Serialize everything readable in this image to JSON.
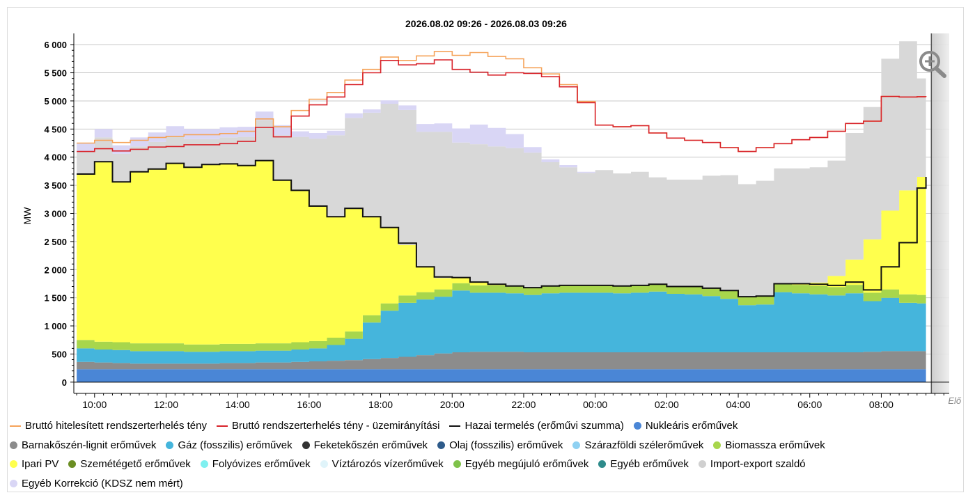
{
  "chart_data": {
    "type": "area",
    "title": "2026.08.02 09:26 - 2026.08.03 09:26",
    "ylabel": "MW",
    "ylim": [
      -200,
      6200
    ],
    "y_ticks": [
      0,
      500,
      1000,
      1500,
      2000,
      2500,
      3000,
      3500,
      4000,
      4500,
      5000,
      5500,
      6000
    ],
    "y_tick_labels": [
      "0",
      "500",
      "1 000",
      "1 500",
      "2 000",
      "2 500",
      "3 000",
      "3 500",
      "4 000",
      "4 500",
      "5 000",
      "5 500",
      "6 000"
    ],
    "xlim_hours": [
      9.42,
      33.9
    ],
    "x_ticks": [
      10,
      12,
      14,
      16,
      18,
      20,
      22,
      24,
      26,
      28,
      30,
      32
    ],
    "x_tick_labels": [
      "10:00",
      "12:00",
      "14:00",
      "16:00",
      "18:00",
      "20:00",
      "22:00",
      "00:00",
      "02:00",
      "04:00",
      "06:00",
      "08:00"
    ],
    "forecast_start_hour": 33.4,
    "forecast_label": "Elő",
    "grid": true,
    "legend_position": "bottom",
    "x_hours": [
      9.5,
      10,
      10.5,
      11,
      11.5,
      12,
      12.5,
      13,
      13.5,
      14,
      14.5,
      15,
      15.5,
      16,
      16.5,
      17,
      17.5,
      18,
      18.5,
      19,
      19.5,
      20,
      20.5,
      21,
      21.5,
      22,
      22.5,
      23,
      23.5,
      24,
      24.5,
      25,
      25.5,
      26,
      26.5,
      27,
      27.5,
      28,
      28.5,
      29,
      29.5,
      30,
      30.5,
      31,
      31.5,
      32,
      32.5,
      33,
      33.25
    ],
    "stack_order": [
      "Nukleáris erőművek",
      "Barnakőszén-lignit erőművek",
      "Gáz (fosszilis) erőművek",
      "Biomassza erőművek",
      "Ipari PV",
      "Import-export szaldó"
    ],
    "series": [
      {
        "name": "Nukleáris erőművek",
        "color": "#4a86d6",
        "kind": "stack",
        "values": [
          230,
          230,
          230,
          230,
          230,
          230,
          230,
          230,
          230,
          230,
          230,
          230,
          230,
          230,
          230,
          230,
          230,
          230,
          230,
          230,
          230,
          230,
          230,
          230,
          230,
          230,
          230,
          230,
          230,
          230,
          230,
          230,
          230,
          230,
          230,
          230,
          230,
          230,
          230,
          230,
          230,
          230,
          230,
          230,
          230,
          230,
          230,
          230,
          230
        ]
      },
      {
        "name": "Barnakőszén-lignit erőművek",
        "color": "#8c8c8c",
        "kind": "stack",
        "values": [
          130,
          120,
          110,
          100,
          100,
          100,
          100,
          100,
          110,
          110,
          120,
          120,
          130,
          140,
          150,
          160,
          180,
          200,
          220,
          250,
          280,
          300,
          310,
          310,
          310,
          300,
          300,
          300,
          300,
          300,
          300,
          300,
          300,
          300,
          300,
          300,
          300,
          300,
          300,
          300,
          300,
          300,
          300,
          300,
          310,
          320,
          320,
          320,
          320
        ]
      },
      {
        "name": "Gáz (fosszilis) erőművek",
        "color": "#45b5dc",
        "kind": "stack",
        "values": [
          240,
          230,
          230,
          220,
          220,
          220,
          210,
          210,
          210,
          210,
          210,
          210,
          220,
          230,
          280,
          380,
          650,
          840,
          960,
          990,
          1010,
          1100,
          1050,
          1050,
          1040,
          1020,
          1050,
          1060,
          1060,
          1060,
          1050,
          1060,
          1080,
          1040,
          1030,
          1000,
          950,
          840,
          850,
          1070,
          1050,
          1030,
          1010,
          1050,
          900,
          950,
          860,
          850,
          850
        ]
      },
      {
        "name": "Biomassza erőművek",
        "color": "#a8d64c",
        "kind": "stack",
        "values": [
          150,
          140,
          140,
          140,
          140,
          140,
          130,
          130,
          130,
          130,
          130,
          130,
          130,
          130,
          130,
          130,
          130,
          130,
          130,
          130,
          130,
          130,
          130,
          130,
          130,
          130,
          130,
          130,
          130,
          130,
          130,
          130,
          130,
          130,
          140,
          140,
          150,
          150,
          150,
          150,
          150,
          150,
          150,
          150,
          150,
          150,
          150,
          150,
          150
        ]
      },
      {
        "name": "Ipari PV",
        "color": "#ffff4d",
        "kind": "stack",
        "values": [
          2950,
          3200,
          2850,
          3050,
          3100,
          3200,
          3150,
          3200,
          3200,
          3180,
          3250,
          2900,
          2700,
          2400,
          2150,
          2200,
          1750,
          1350,
          900,
          450,
          200,
          100,
          60,
          20,
          0,
          0,
          0,
          0,
          0,
          0,
          0,
          0,
          0,
          0,
          0,
          0,
          0,
          0,
          0,
          0,
          20,
          60,
          200,
          450,
          950,
          1400,
          1850,
          2100,
          2150
        ]
      },
      {
        "name": "Import-export szaldó",
        "color": "#d8d8d8",
        "kind": "stack",
        "values": [
          400,
          430,
          500,
          450,
          480,
          480,
          500,
          450,
          470,
          500,
          720,
          800,
          950,
          1200,
          1450,
          1600,
          1850,
          2200,
          2400,
          2400,
          2600,
          2400,
          2450,
          2450,
          2450,
          2400,
          2200,
          2100,
          2000,
          2050,
          2000,
          2020,
          1900,
          1900,
          1900,
          2000,
          2050,
          2000,
          2050,
          2050,
          2050,
          2050,
          2050,
          2250,
          2350,
          2700,
          2650,
          1750,
          1800
        ]
      },
      {
        "name": "Egyéb Korrekció (KDSZ nem mért)",
        "color": "#d9d6f5",
        "kind": "stack",
        "values": [
          150,
          150,
          150,
          160,
          170,
          180,
          180,
          180,
          180,
          180,
          150,
          180,
          100,
          100,
          80,
          80,
          60,
          60,
          80,
          140,
          150,
          250,
          350,
          330,
          250,
          100,
          50,
          40,
          20,
          0,
          0,
          0,
          0,
          0,
          0,
          0,
          0,
          0,
          0,
          0,
          0,
          0,
          0,
          0,
          0,
          0,
          0,
          0,
          0
        ]
      },
      {
        "name": "Bruttó hitelesített rendszerterhelés tény",
        "color": "#f5a35a",
        "kind": "line",
        "values": [
          4250,
          4300,
          4260,
          4300,
          4350,
          4370,
          4400,
          4400,
          4420,
          4460,
          4680,
          4540,
          4830,
          5030,
          5150,
          5370,
          5560,
          5780,
          5720,
          5800,
          5880,
          5810,
          5860,
          5790,
          5750,
          5590,
          5480,
          5290,
          4990,
          4570,
          4540,
          4560,
          4430,
          4340,
          4300,
          4260,
          4170,
          4100,
          4170,
          4240,
          4310,
          4350,
          4460,
          4600,
          4640,
          5080,
          5070,
          5075,
          5075
        ]
      },
      {
        "name": "Bruttó rendszerterhelés tény - üzemirányítási",
        "color": "#d8232a",
        "kind": "line",
        "values": [
          4100,
          4150,
          4110,
          4140,
          4180,
          4190,
          4220,
          4220,
          4240,
          4280,
          4530,
          4360,
          4730,
          4930,
          5070,
          5290,
          5500,
          5720,
          5640,
          5660,
          5730,
          5560,
          5510,
          5460,
          5500,
          5490,
          5430,
          5250,
          4970,
          4570,
          4540,
          4560,
          4430,
          4340,
          4300,
          4260,
          4170,
          4100,
          4170,
          4240,
          4310,
          4350,
          4460,
          4600,
          4640,
          5080,
          5070,
          5075,
          5070
        ]
      },
      {
        "name": "Hazai termelés (erőművi szumma)",
        "color": "#111111",
        "kind": "line",
        "values": [
          3700,
          3920,
          3560,
          3740,
          3790,
          3890,
          3820,
          3870,
          3880,
          3850,
          3940,
          3590,
          3410,
          3130,
          2940,
          3090,
          2940,
          2750,
          2470,
          2050,
          1870,
          1860,
          1780,
          1740,
          1710,
          1680,
          1710,
          1720,
          1720,
          1720,
          1710,
          1720,
          1740,
          1700,
          1700,
          1670,
          1630,
          1520,
          1530,
          1750,
          1750,
          1740,
          1720,
          1780,
          1640,
          2050,
          2480,
          3450,
          3650
        ]
      }
    ]
  },
  "legend": {
    "items": [
      {
        "label": "Bruttó hitelesített rendszerterhelés tény",
        "color": "#f5a35a",
        "symbol": "line"
      },
      {
        "label": "Bruttó rendszerterhelés tény - üzemirányítási",
        "color": "#d8232a",
        "symbol": "line"
      },
      {
        "label": "Hazai termelés (erőművi szumma)",
        "color": "#111111",
        "symbol": "line"
      },
      {
        "label": "Nukleáris erőművek",
        "color": "#4a86d6",
        "symbol": "dot"
      },
      {
        "label": "Barnakőszén-lignit erőművek",
        "color": "#8c8c8c",
        "symbol": "dot"
      },
      {
        "label": "Gáz (fosszilis) erőművek",
        "color": "#45b5dc",
        "symbol": "dot"
      },
      {
        "label": "Feketekőszén erőművek",
        "color": "#333333",
        "symbol": "dot"
      },
      {
        "label": "Olaj (fosszilis) erőművek",
        "color": "#2e5b8a",
        "symbol": "dot"
      },
      {
        "label": "Szárazföldi szélerőművek",
        "color": "#8fd1f2",
        "symbol": "dot"
      },
      {
        "label": "Biomassza erőművek",
        "color": "#a8d64c",
        "symbol": "dot"
      },
      {
        "label": "Ipari PV",
        "color": "#ffff4d",
        "symbol": "dot"
      },
      {
        "label": "Szemétégető erőművek",
        "color": "#6b8e23",
        "symbol": "dot"
      },
      {
        "label": "Folyóvizes erőművek",
        "color": "#7ff0f0",
        "symbol": "dot"
      },
      {
        "label": "Víztározós vízerőművek",
        "color": "#e0f4fa",
        "symbol": "dot"
      },
      {
        "label": "Egyéb megújuló erőművek",
        "color": "#7fc24a",
        "symbol": "dot"
      },
      {
        "label": "Egyéb erőművek",
        "color": "#2e8b8b",
        "symbol": "dot"
      },
      {
        "label": "Import-export szaldó",
        "color": "#d0d0d0",
        "symbol": "dot"
      },
      {
        "label": "Egyéb Korrekció (KDSZ nem mért)",
        "color": "#d9d6f5",
        "symbol": "dot"
      }
    ],
    "rows": [
      [
        0,
        1,
        2,
        3
      ],
      [
        4,
        5,
        6,
        7,
        8,
        9
      ],
      [
        10,
        11,
        12,
        13,
        14,
        15,
        16
      ],
      [
        17
      ]
    ]
  },
  "toolbar": {
    "zoom_icon": "zoom-in-icon"
  }
}
